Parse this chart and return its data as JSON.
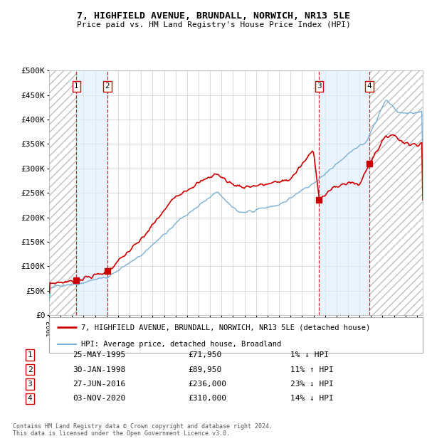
{
  "title": "7, HIGHFIELD AVENUE, BRUNDALL, NORWICH, NR13 5LE",
  "subtitle": "Price paid vs. HM Land Registry's House Price Index (HPI)",
  "sales": [
    {
      "num": 1,
      "date": "25-MAY-1995",
      "year": 1995.38,
      "price": 71950,
      "pct": "1%",
      "dir": "↓"
    },
    {
      "num": 2,
      "date": "30-JAN-1998",
      "year": 1998.08,
      "price": 89950,
      "pct": "11%",
      "dir": "↑"
    },
    {
      "num": 3,
      "date": "27-JUN-2016",
      "year": 2016.49,
      "price": 236000,
      "pct": "23%",
      "dir": "↓"
    },
    {
      "num": 4,
      "date": "03-NOV-2020",
      "year": 2020.84,
      "price": 310000,
      "pct": "14%",
      "dir": "↓"
    }
  ],
  "legend_house": "7, HIGHFIELD AVENUE, BRUNDALL, NORWICH, NR13 5LE (detached house)",
  "legend_hpi": "HPI: Average price, detached house, Broadland",
  "footer1": "Contains HM Land Registry data © Crown copyright and database right 2024.",
  "footer2": "This data is licensed under the Open Government Licence v3.0.",
  "house_color": "#cc0000",
  "hpi_color": "#7ab0d4",
  "hatch_color": "#bbbbbb",
  "shade_color": "#ddeeff",
  "grid_color": "#cccccc",
  "vline_color": "#cc0000",
  "ylim": [
    0,
    500000
  ],
  "yticks": [
    0,
    50000,
    100000,
    150000,
    200000,
    250000,
    300000,
    350000,
    400000,
    450000,
    500000
  ],
  "xlim_start": 1993.0,
  "xlim_end": 2025.5,
  "table_rows": [
    [
      "1",
      "25-MAY-1995",
      "£71,950",
      "1% ↓ HPI"
    ],
    [
      "2",
      "30-JAN-1998",
      "£89,950",
      "11% ↑ HPI"
    ],
    [
      "3",
      "27-JUN-2016",
      "£236,000",
      "23% ↓ HPI"
    ],
    [
      "4",
      "03-NOV-2020",
      "£310,000",
      "14% ↓ HPI"
    ]
  ]
}
